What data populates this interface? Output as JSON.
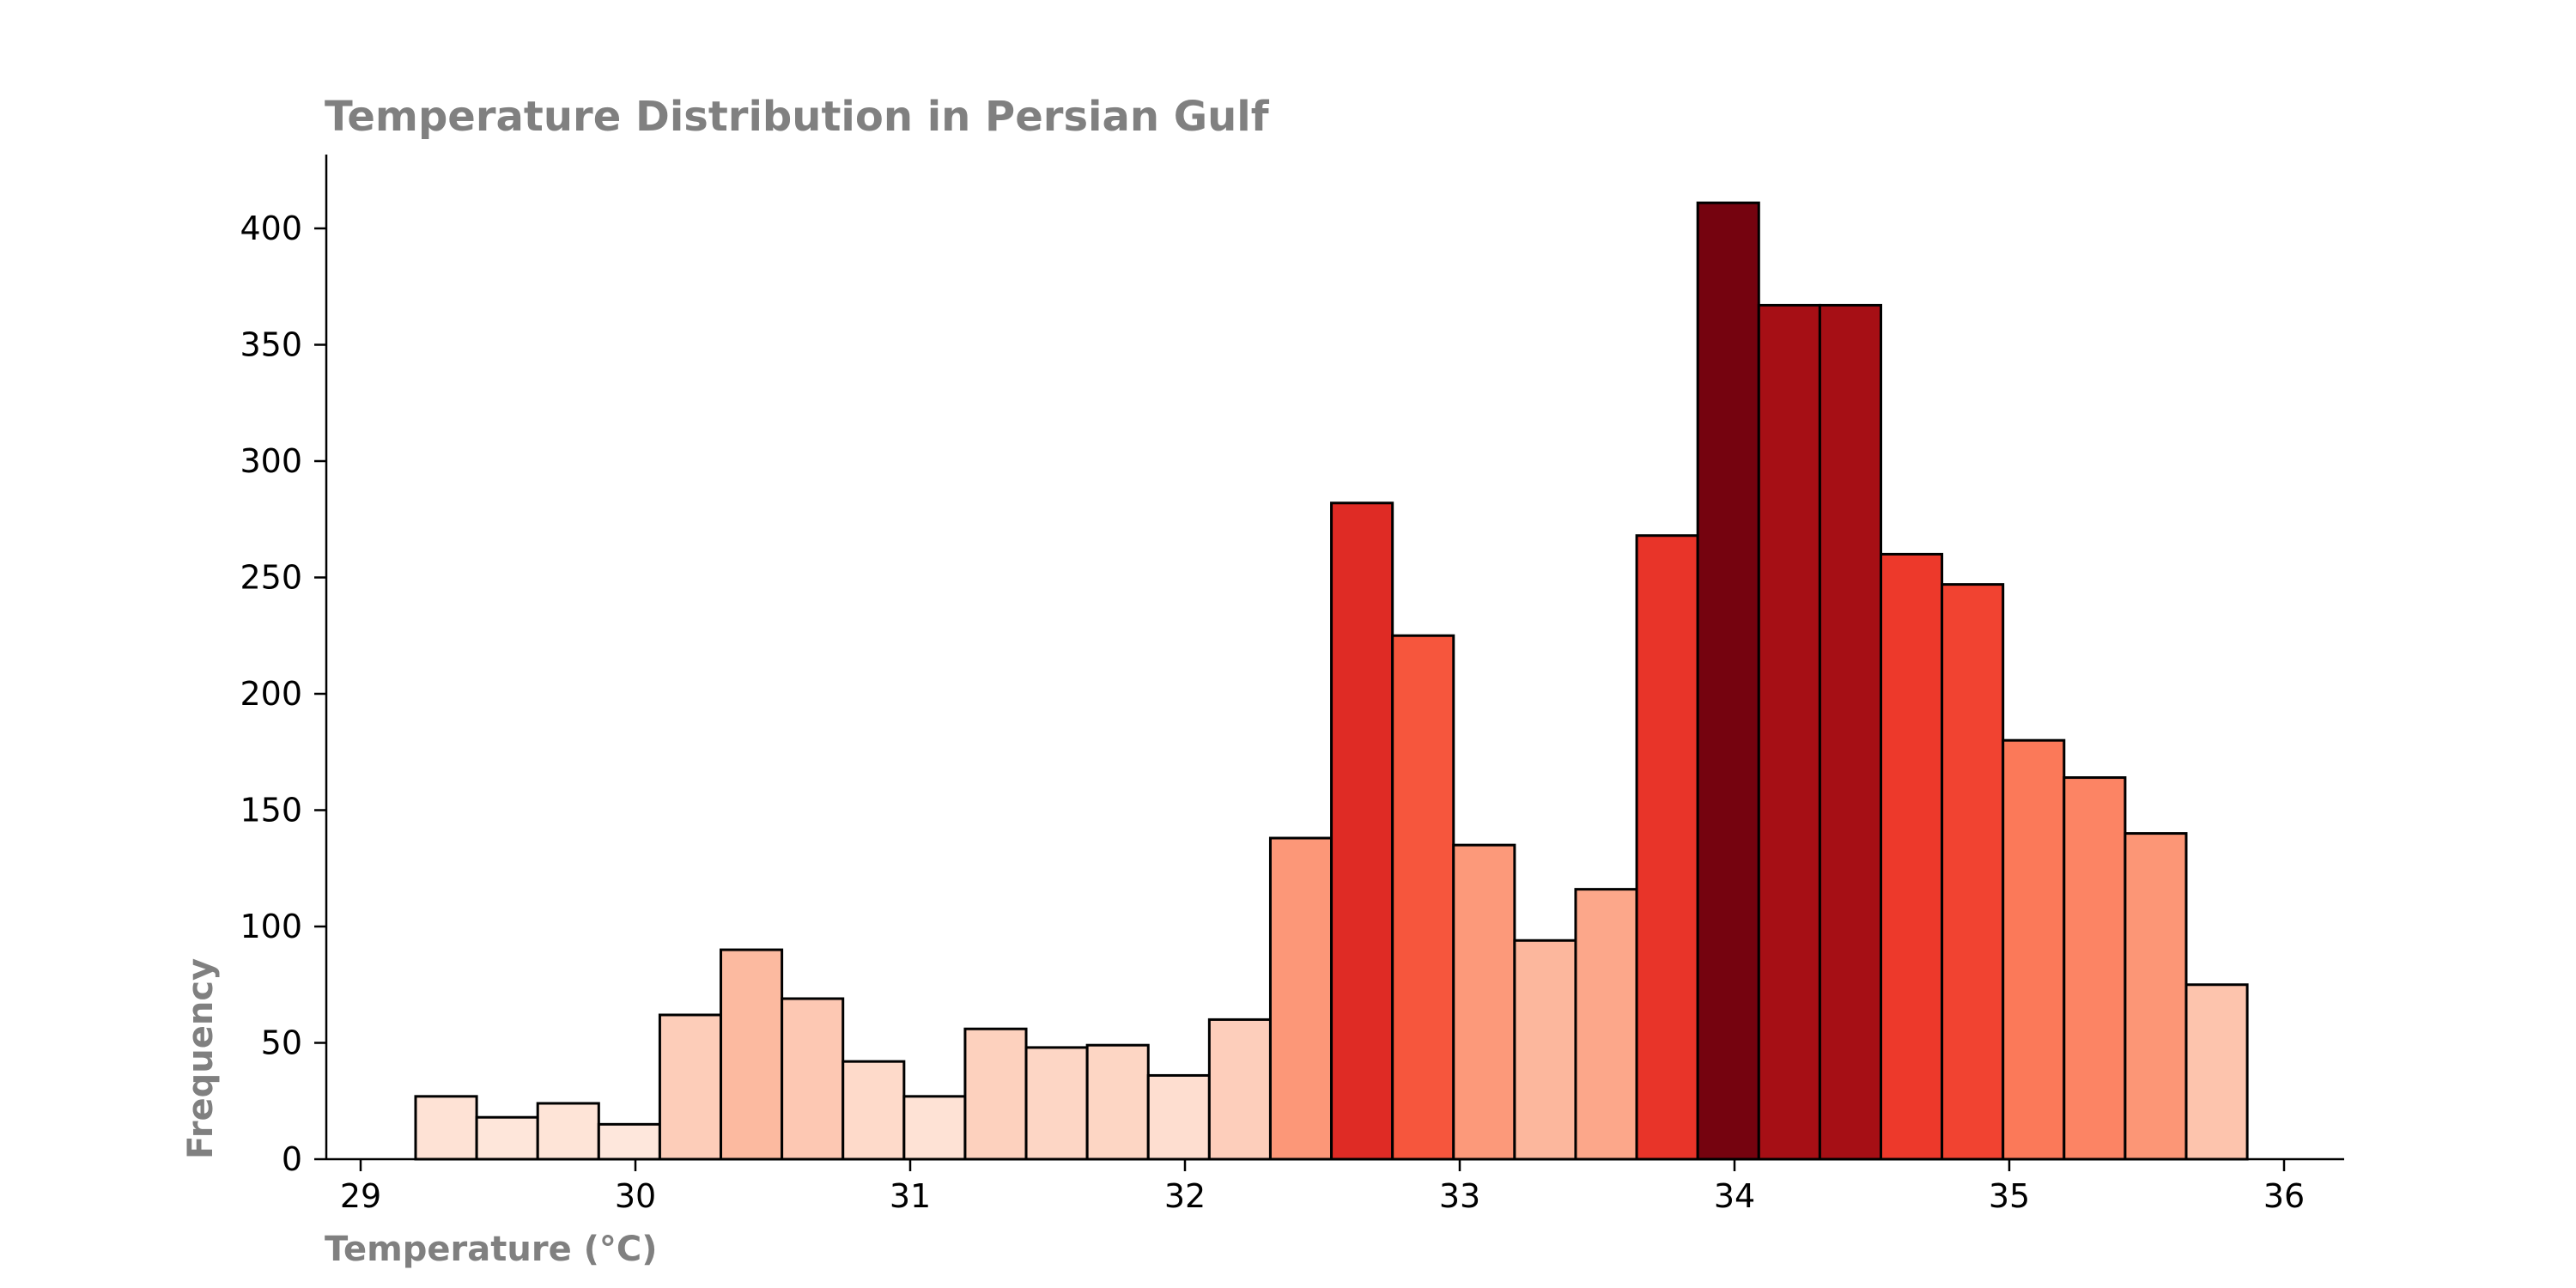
{
  "chart_data": {
    "type": "bar",
    "title": "Temperature Distribution in Persian Gulf",
    "xlabel": "Temperature (°C)",
    "ylabel": "Frequency",
    "xlim": [
      28.85,
      36.2
    ],
    "ylim": [
      0,
      430
    ],
    "xticks": [
      29,
      30,
      31,
      32,
      33,
      34,
      35,
      36
    ],
    "yticks": [
      0,
      50,
      100,
      150,
      200,
      250,
      300,
      350,
      400
    ],
    "bin_start": 29.2,
    "bin_width": 0.2222,
    "values": [
      27,
      18,
      24,
      15,
      62,
      90,
      69,
      42,
      27,
      56,
      48,
      49,
      36,
      60,
      138,
      282,
      225,
      135,
      94,
      116,
      268,
      411,
      367,
      367,
      260,
      247,
      180,
      164,
      140,
      75
    ],
    "grid": false,
    "legend": "none",
    "colormap": "Reds",
    "edge_color": "#000000"
  }
}
